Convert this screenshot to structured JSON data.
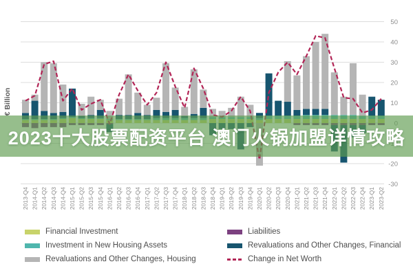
{
  "banner": {
    "text": "2023十大股票配资平台 澳门火锅加盟详情攻略",
    "background_color": "#5f9c50",
    "text_color": "#ffffff"
  },
  "axis": {
    "y_label": "€ Billion",
    "tick_color": "#8c8c8c",
    "grid_color": "#dcdcdc"
  },
  "legend": {
    "columns": [
      [
        {
          "label": "Financial Investment",
          "color": "#c8d36a",
          "swatch": "square"
        },
        {
          "label": "Investment in New Housing Assets",
          "color": "#4fb6ad",
          "swatch": "square"
        },
        {
          "label": "Revaluations and Other Changes, Housing",
          "color": "#b5b5b5",
          "swatch": "square"
        }
      ],
      [
        {
          "label": "Liabilities",
          "color": "#7c4180",
          "swatch": "square"
        },
        {
          "label": "Revaluations and Other Changes, Financial",
          "color": "#17556f",
          "swatch": "square"
        },
        {
          "label": "Change in Net Worth",
          "color": "#b22556",
          "swatch": "dashed-line"
        }
      ]
    ]
  },
  "chart_data": {
    "type": "bar",
    "subtype": "stacked-bar-with-line",
    "title": "",
    "xlabel": "",
    "ylabel": "€ Billion",
    "ylim": [
      -30,
      50
    ],
    "yticks": [
      50,
      40,
      30,
      20,
      10,
      0,
      -10,
      -20,
      -30
    ],
    "grid": true,
    "legend_position": "bottom",
    "categories": [
      "2013-Q4",
      "2014-Q1",
      "2014-Q2",
      "2014-Q3",
      "2014-Q4",
      "2015-Q1",
      "2015-Q2",
      "2015-Q3",
      "2015-Q4",
      "2016-Q1",
      "2016-Q2",
      "2016-Q3",
      "2016-Q4",
      "2017-Q1",
      "2017-Q2",
      "2017-Q3",
      "2017-Q4",
      "2018-Q1",
      "2018-Q2",
      "2018-Q3",
      "2018-Q4",
      "2019-Q1",
      "2019-Q2",
      "2019-Q3",
      "2019-Q4",
      "2020-Q1",
      "2020-Q2",
      "2020-Q3",
      "2020-Q4",
      "2021-Q1",
      "2021-Q2",
      "2021-Q3",
      "2021-Q4",
      "2022-Q1",
      "2022-Q2",
      "2022-Q3",
      "2022-Q4",
      "2023-Q1",
      "2023-Q2"
    ],
    "series": [
      {
        "name": "Financial Investment",
        "color": "#c8d36a",
        "values": [
          1.5,
          1.5,
          1.5,
          1.5,
          2,
          2.5,
          2,
          2,
          2,
          1.5,
          1.5,
          1.5,
          1.5,
          1.5,
          1.5,
          1.5,
          1.5,
          1.5,
          1.5,
          1.5,
          2,
          2,
          2,
          2,
          2,
          1.5,
          2,
          2,
          2,
          2,
          2,
          2,
          2,
          2,
          2,
          2,
          2,
          2,
          2
        ]
      },
      {
        "name": "Investment in New Housing Assets",
        "color": "#4fb6ad",
        "values": [
          0.5,
          0.5,
          0.5,
          0.5,
          0.5,
          0.5,
          0.5,
          0.5,
          0.5,
          0.5,
          0.5,
          0.5,
          0.5,
          0.5,
          1,
          1,
          1,
          1,
          1,
          1,
          1,
          1,
          1,
          1,
          1,
          1,
          1.5,
          1.5,
          1.5,
          1.5,
          2,
          2,
          2,
          2,
          2,
          2,
          1.5,
          1.5,
          1.5
        ]
      },
      {
        "name": "Liabilities",
        "color": "#7c4180",
        "values": [
          -2,
          -2.5,
          -2,
          -2,
          -2,
          -1,
          -1,
          -1,
          -1,
          -0.5,
          0,
          0,
          0,
          0,
          0,
          0,
          0,
          0,
          0,
          0,
          0,
          0,
          0,
          0,
          0,
          0,
          0,
          0,
          0,
          -1,
          -1,
          -1,
          -1,
          -1,
          -1,
          -1,
          -1,
          -1,
          -1
        ]
      },
      {
        "name": "Revaluations and Other Changes, Financial",
        "color": "#17556f",
        "values": [
          3,
          9,
          4,
          3,
          3,
          14,
          1,
          1.5,
          4,
          -4,
          2,
          2,
          3,
          2,
          4,
          3,
          4,
          1,
          2,
          5,
          -6,
          -3,
          -3,
          -13,
          -2,
          2.5,
          21,
          7.5,
          7,
          3,
          3,
          3,
          3,
          -13,
          -18.5,
          -6,
          -4,
          9.5,
          8
        ]
      },
      {
        "name": "Revaluations and Other Changes, Housing",
        "color": "#b5b5b5",
        "values": [
          6.5,
          3,
          24,
          24.5,
          13.5,
          0,
          6,
          9,
          5,
          4,
          8,
          20,
          10,
          5,
          6,
          24,
          11,
          4.5,
          22,
          9,
          4,
          3,
          4.5,
          10,
          6,
          -21,
          0,
          0,
          20,
          17,
          26,
          33,
          37,
          21,
          9,
          25.5,
          10.5,
          0,
          0
        ]
      }
    ],
    "line": {
      "name": "Change in Net Worth",
      "color": "#b22556",
      "style": "dashed",
      "values": [
        11,
        13.5,
        29,
        30.5,
        11,
        17,
        6.5,
        9.5,
        11.5,
        -0.5,
        14,
        24,
        16,
        9,
        15,
        30,
        18,
        7.5,
        27,
        17,
        4,
        3,
        6,
        13,
        6,
        -18,
        15,
        25,
        30,
        24,
        33,
        43,
        42,
        27,
        12.5,
        12,
        5,
        6.5,
        12
      ]
    }
  }
}
